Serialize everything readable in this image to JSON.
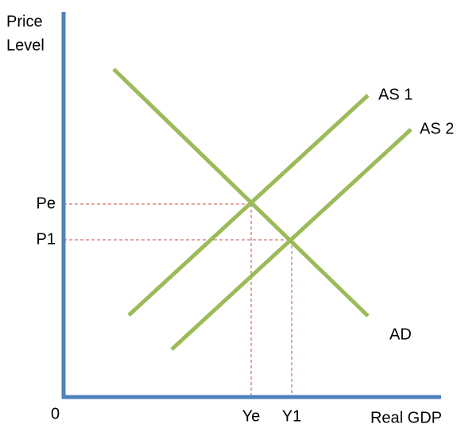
{
  "axes": {
    "y_label": [
      "Price",
      "Level"
    ],
    "x_label": "Real GDP",
    "origin": "0"
  },
  "curves": [
    {
      "label": "AD"
    },
    {
      "label": "AS 1"
    },
    {
      "label": "AS 2"
    }
  ],
  "price_levels": [
    "Pe",
    "P1"
  ],
  "output_levels": [
    "Ye",
    "Y1"
  ]
}
